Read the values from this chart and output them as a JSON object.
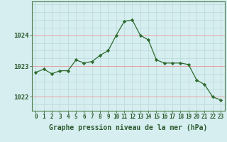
{
  "hours": [
    0,
    1,
    2,
    3,
    4,
    5,
    6,
    7,
    8,
    9,
    10,
    11,
    12,
    13,
    14,
    15,
    16,
    17,
    18,
    19,
    20,
    21,
    22,
    23
  ],
  "pressure": [
    1022.8,
    1022.9,
    1022.75,
    1022.85,
    1022.85,
    1023.2,
    1023.1,
    1023.15,
    1023.35,
    1023.5,
    1024.0,
    1024.45,
    1024.5,
    1024.0,
    1023.85,
    1023.2,
    1023.1,
    1023.1,
    1023.1,
    1023.05,
    1022.55,
    1022.4,
    1022.0,
    1021.9
  ],
  "line_color": "#2d6a2d",
  "marker": "D",
  "marker_size": 2.2,
  "bg_color": "#d6eef0",
  "pink_grid_color": "#e8a0a0",
  "teal_grid_color": "#b8d8d8",
  "xlabel": "Graphe pression niveau de la mer (hPa)",
  "xlabel_fontsize": 7.0,
  "ylabel_ticks": [
    1022,
    1023,
    1024
  ],
  "ylim": [
    1021.55,
    1025.1
  ],
  "xlim": [
    -0.5,
    23.5
  ],
  "tick_label_color": "#2d5a2d",
  "axis_color": "#2d6a2d",
  "border_color": "#4a7a4a",
  "tick_fontsize": 5.5,
  "ytick_fontsize": 6.5
}
